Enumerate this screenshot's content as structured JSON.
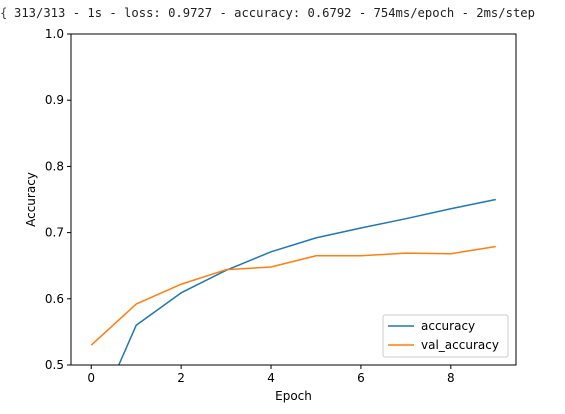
{
  "log": {
    "glyph": "{",
    "text": "313/313 - 1s - loss: 0.9727 - accuracy: 0.6792 - 754ms/epoch - 2ms/step"
  },
  "chart_data": {
    "type": "line",
    "title": "",
    "xlabel": "Epoch",
    "ylabel": "Accuracy",
    "xlim": [
      -0.45,
      9.45
    ],
    "ylim": [
      0.5,
      1.0
    ],
    "xticks": [
      0,
      2,
      4,
      6,
      8
    ],
    "yticks": [
      0.5,
      0.6,
      0.7,
      0.8,
      0.9,
      1.0
    ],
    "ytick_labels": [
      "0.5",
      "0.6",
      "0.7",
      "0.8",
      "0.9",
      "1.0"
    ],
    "grid": false,
    "legend_position": "lower-right",
    "x": [
      0,
      1,
      2,
      3,
      4,
      5,
      6,
      7,
      8,
      9
    ],
    "series": [
      {
        "name": "accuracy",
        "color": "#1f77b4",
        "values": [
          0.405,
          0.56,
          0.609,
          0.643,
          0.671,
          0.692,
          0.707,
          0.721,
          0.736,
          0.75
        ]
      },
      {
        "name": "val_accuracy",
        "color": "#ff7f0e",
        "values": [
          0.53,
          0.592,
          0.622,
          0.644,
          0.648,
          0.665,
          0.665,
          0.669,
          0.668,
          0.679
        ]
      }
    ]
  }
}
